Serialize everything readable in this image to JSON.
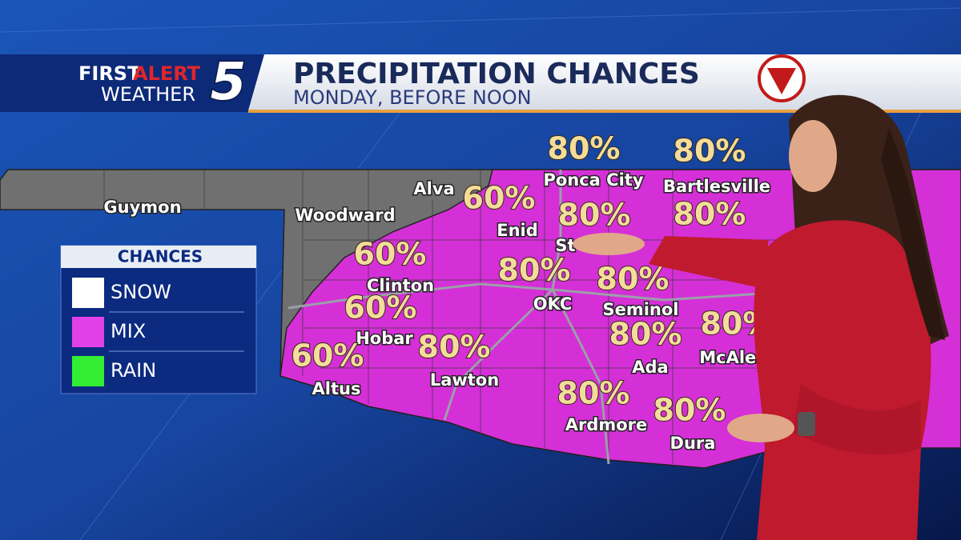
{
  "header": {
    "logo_first": "FIRST",
    "logo_alert": "ALERT",
    "logo_weather": "WEATHER",
    "logo_number": "5",
    "title": "PRECIPITATION CHANCES",
    "subtitle": "MONDAY, BEFORE NOON"
  },
  "legend": {
    "title": "CHANCES",
    "items": [
      {
        "label": "SNOW",
        "color": "#ffffff"
      },
      {
        "label": "MIX",
        "color": "#e040e8"
      },
      {
        "label": "RAIN",
        "color": "#33ee33"
      }
    ]
  },
  "cities": [
    "Guymon",
    "Alva",
    "Woodward",
    "Ponca City",
    "Bartlesville",
    "Enid",
    "St",
    "Clinton",
    "OKC",
    "Seminol",
    "Hobar",
    "Lawton",
    "Altus",
    "Ada",
    "McAles",
    "Ardmore",
    "Dura"
  ],
  "chances": [
    "80%",
    "80%",
    "60%",
    "80%",
    "80%",
    "60%",
    "80%",
    "80%",
    "60%",
    "80%",
    "80%",
    "80%",
    "60%",
    "80%",
    "80%"
  ]
}
